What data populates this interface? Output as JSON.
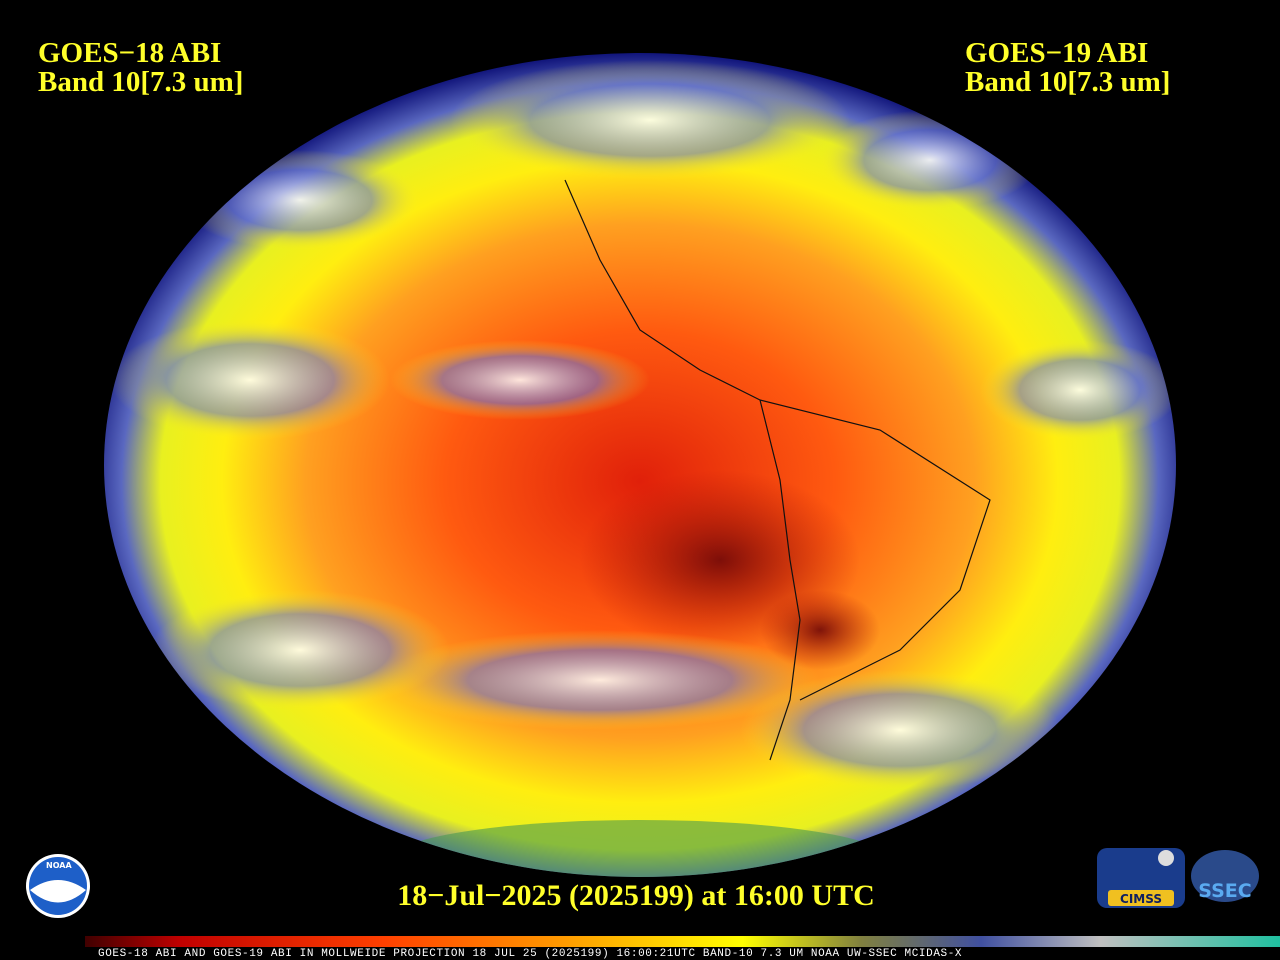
{
  "header": {
    "left": {
      "title": "GOES−18 ABI",
      "band": "Band 10[7.3 um]"
    },
    "right": {
      "title": "GOES−19 ABI",
      "band": "Band 10[7.3 um]"
    }
  },
  "footer": {
    "timestamp": "18−Jul−2025 (2025199) at 16:00 UTC"
  },
  "info_bar": "GOES-18 ABI AND GOES-19 ABI IN MOLLWEIDE PROJECTION 18 JUL 25 (2025199) 16:00:21UTC BAND-10 7.3 UM NOAA UW-SSEC MCIDAS-X",
  "logos": {
    "noaa": "NOAA",
    "cimss": "CIMSS",
    "ssec": "SSEC"
  }
}
